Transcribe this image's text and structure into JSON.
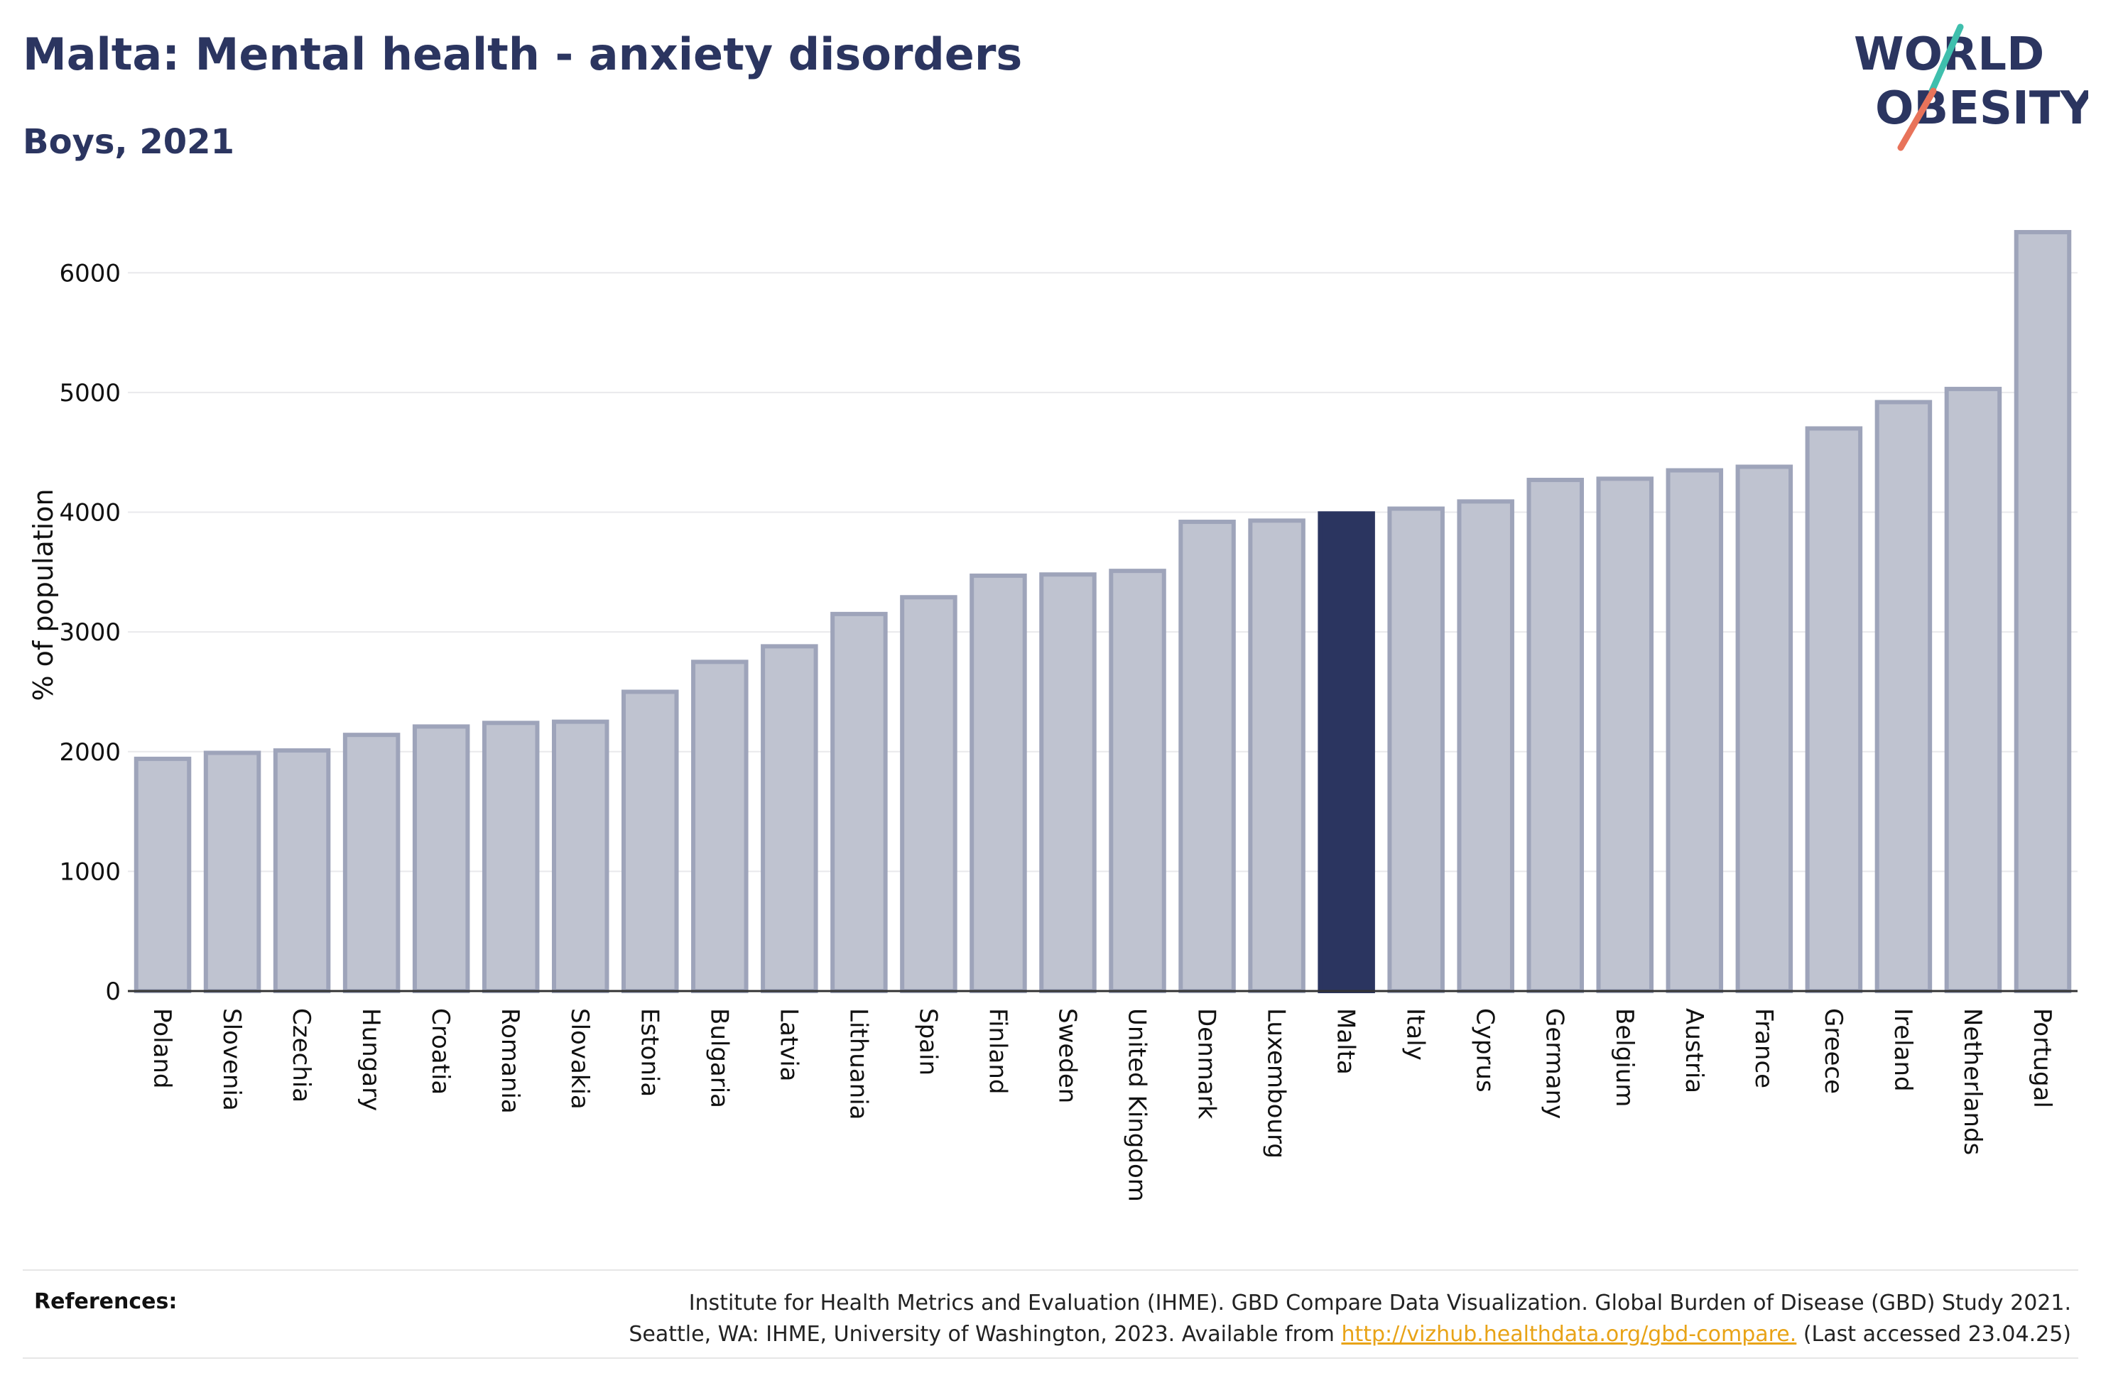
{
  "header": {
    "title": "Malta: Mental health - anxiety disorders",
    "subtitle": "Boys, 2021"
  },
  "logo": {
    "line1": "WORLD",
    "line2": "OBESITY",
    "colors": {
      "text": "#2b3560",
      "slash_teal": "#3fbfad",
      "slash_coral": "#e8735a"
    }
  },
  "chart_data": {
    "type": "bar",
    "categories": [
      "Poland",
      "Slovenia",
      "Czechia",
      "Hungary",
      "Croatia",
      "Romania",
      "Slovakia",
      "Estonia",
      "Bulgaria",
      "Latvia",
      "Lithuania",
      "Spain",
      "Finland",
      "Sweden",
      "United Kingdom",
      "Denmark",
      "Luxembourg",
      "Malta",
      "Italy",
      "Cyprus",
      "Germany",
      "Belgium",
      "Austria",
      "France",
      "Greece",
      "Ireland",
      "Netherlands",
      "Portugal"
    ],
    "values": [
      1940,
      1990,
      2010,
      2140,
      2210,
      2240,
      2250,
      2500,
      2750,
      2880,
      3150,
      3290,
      3470,
      3480,
      3510,
      3920,
      3930,
      3990,
      4030,
      4090,
      4270,
      4280,
      4350,
      4380,
      4700,
      4920,
      5030,
      6340
    ],
    "highlight": "Malta",
    "ylabel": "% of population",
    "xlabel": "",
    "ylim": [
      0,
      6500
    ],
    "yticks": [
      0,
      1000,
      2000,
      3000,
      4000,
      5000,
      6000
    ],
    "grid": true,
    "colors": {
      "bar": "#bfc3d0",
      "bar_edge": "#9ea4ba",
      "highlight": "#2b3560",
      "grid": "#e9e9ec",
      "axis": "#333333"
    }
  },
  "references": {
    "label": "References:",
    "line1": "Institute for Health Metrics and Evaluation (IHME). GBD Compare Data Visualization. Global Burden of Disease (GBD) Study 2021.",
    "line2_before": "Seattle, WA: IHME, University of Washington, 2023. Available from",
    "link": "http://vizhub.healthdata.org/gbd-compare.",
    "line2_after": "(Last accessed 23.04.25)"
  }
}
